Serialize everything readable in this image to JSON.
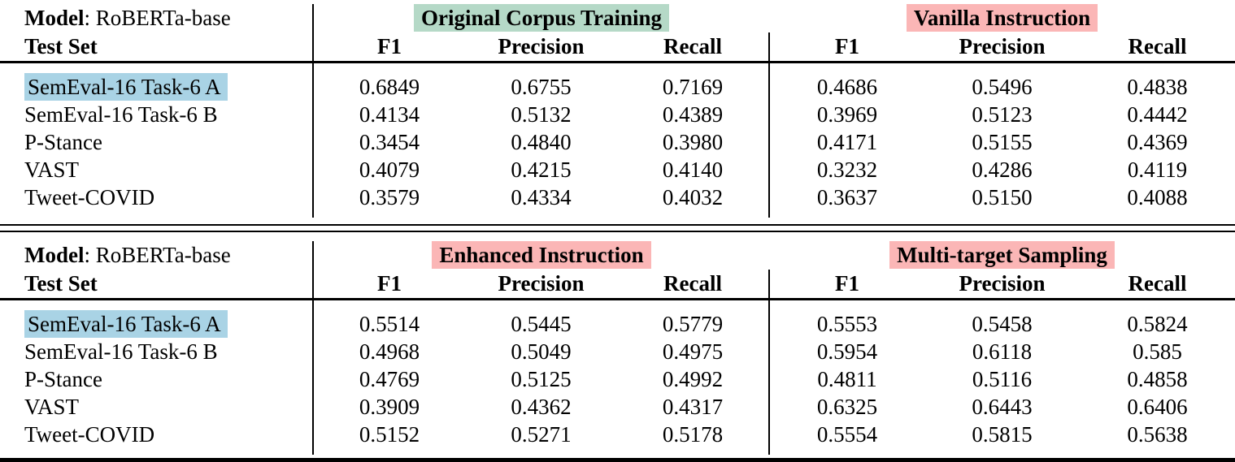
{
  "colors": {
    "green_highlight": "#b5d9c7",
    "pink_highlight": "#fbb6b6",
    "blue_highlight": "#a9d3e5",
    "rule_color": "#000000",
    "background": "#ffffff"
  },
  "tables": [
    {
      "model_label": "Model",
      "model_value": ": RoBERTa-base",
      "test_set_label": "Test Set",
      "groups": [
        {
          "title": "Original Corpus Training",
          "highlight": "green",
          "columns": [
            "F1",
            "Precision",
            "Recall"
          ]
        },
        {
          "title": "Vanilla Instruction",
          "highlight": "pink",
          "columns": [
            "F1",
            "Precision",
            "Recall"
          ]
        }
      ],
      "rows": [
        {
          "label": "SemEval-16 Task-6 A",
          "highlighted": true,
          "values": [
            "0.6849",
            "0.6755",
            "0.7169",
            "0.4686",
            "0.5496",
            "0.4838"
          ]
        },
        {
          "label": "SemEval-16 Task-6 B",
          "highlighted": false,
          "values": [
            "0.4134",
            "0.5132",
            "0.4389",
            "0.3969",
            "0.5123",
            "0.4442"
          ]
        },
        {
          "label": "P-Stance",
          "highlighted": false,
          "values": [
            "0.3454",
            "0.4840",
            "0.3980",
            "0.4171",
            "0.5155",
            "0.4369"
          ]
        },
        {
          "label": "VAST",
          "highlighted": false,
          "values": [
            "0.4079",
            "0.4215",
            "0.4140",
            "0.3232",
            "0.4286",
            "0.4119"
          ]
        },
        {
          "label": "Tweet-COVID",
          "highlighted": false,
          "values": [
            "0.3579",
            "0.4334",
            "0.4032",
            "0.3637",
            "0.5150",
            "0.4088"
          ]
        }
      ]
    },
    {
      "model_label": "Model",
      "model_value": ": RoBERTa-base",
      "test_set_label": "Test Set",
      "groups": [
        {
          "title": "Enhanced Instruction",
          "highlight": "pink",
          "columns": [
            "F1",
            "Precision",
            "Recall"
          ]
        },
        {
          "title": "Multi-target Sampling",
          "highlight": "pink",
          "columns": [
            "F1",
            "Precision",
            "Recall"
          ]
        }
      ],
      "rows": [
        {
          "label": "SemEval-16 Task-6 A",
          "highlighted": true,
          "values": [
            "0.5514",
            "0.5445",
            "0.5779",
            "0.5553",
            "0.5458",
            "0.5824"
          ]
        },
        {
          "label": "SemEval-16 Task-6 B",
          "highlighted": false,
          "values": [
            "0.4968",
            "0.5049",
            "0.4975",
            "0.5954",
            "0.6118",
            "0.585"
          ]
        },
        {
          "label": "P-Stance",
          "highlighted": false,
          "values": [
            "0.4769",
            "0.5125",
            "0.4992",
            "0.4811",
            "0.5116",
            "0.4858"
          ]
        },
        {
          "label": "VAST",
          "highlighted": false,
          "values": [
            "0.3909",
            "0.4362",
            "0.4317",
            "0.6325",
            "0.6443",
            "0.6406"
          ]
        },
        {
          "label": "Tweet-COVID",
          "highlighted": false,
          "values": [
            "0.5152",
            "0.5271",
            "0.5178",
            "0.5554",
            "0.5815",
            "0.5638"
          ]
        }
      ]
    }
  ]
}
